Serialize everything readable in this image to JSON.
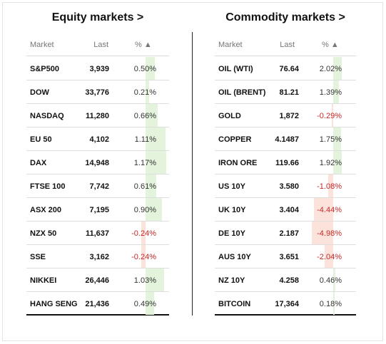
{
  "equity": {
    "title": "Equity markets >",
    "headers": {
      "market": "Market",
      "last": "Last",
      "pct": "% ▲"
    },
    "rows": [
      {
        "market": "S&P500",
        "last": "3,939",
        "pct": "0.50%",
        "value": 0.5
      },
      {
        "market": "DOW",
        "last": "33,776",
        "pct": "0.21%",
        "value": 0.21
      },
      {
        "market": "NASDAQ",
        "last": "11,280",
        "pct": "0.66%",
        "value": 0.66
      },
      {
        "market": "EU 50",
        "last": "4,102",
        "pct": "1.11%",
        "value": 1.11
      },
      {
        "market": "DAX",
        "last": "14,948",
        "pct": "1.17%",
        "value": 1.17
      },
      {
        "market": "FTSE 100",
        "last": "7,742",
        "pct": "0.61%",
        "value": 0.61
      },
      {
        "market": "ASX 200",
        "last": "7,195",
        "pct": "0.90%",
        "value": 0.9
      },
      {
        "market": "NZX 50",
        "last": "11,637",
        "pct": "-0.24%",
        "value": -0.24
      },
      {
        "market": "SSE",
        "last": "3,162",
        "pct": "-0.24%",
        "value": -0.24
      },
      {
        "market": "NIKKEI",
        "last": "26,446",
        "pct": "1.03%",
        "value": 1.03
      },
      {
        "market": "HANG SENG",
        "last": "21,436",
        "pct": "0.49%",
        "value": 0.49
      }
    ]
  },
  "commodity": {
    "title": "Commodity markets >",
    "headers": {
      "market": "Market",
      "last": "Last",
      "pct": "% ▲"
    },
    "rows": [
      {
        "market": "OIL (WTI)",
        "last": "76.64",
        "pct": "2.02%",
        "value": 2.02
      },
      {
        "market": "OIL (BRENT)",
        "last": "81.21",
        "pct": "1.39%",
        "value": 1.39
      },
      {
        "market": "GOLD",
        "last": "1,872",
        "pct": "-0.29%",
        "value": -0.29
      },
      {
        "market": "COPPER",
        "last": "4.1487",
        "pct": "1.75%",
        "value": 1.75
      },
      {
        "market": "IRON ORE",
        "last": "119.66",
        "pct": "1.92%",
        "value": 1.92
      },
      {
        "market": "US 10Y",
        "last": "3.580",
        "pct": "-1.08%",
        "value": -1.08
      },
      {
        "market": "UK 10Y",
        "last": "3.404",
        "pct": "-4.44%",
        "value": -4.44
      },
      {
        "market": "DE 10Y",
        "last": "2.187",
        "pct": "-4.98%",
        "value": -4.98
      },
      {
        "market": "AUS 10Y",
        "last": "3.651",
        "pct": "-2.04%",
        "value": -2.04
      },
      {
        "market": "NZ 10Y",
        "last": "4.258",
        "pct": "0.46%",
        "value": 0.46
      },
      {
        "market": "BITCOIN",
        "last": "17,364",
        "pct": "0.18%",
        "value": 0.18
      }
    ]
  },
  "colors": {
    "positive_bar": "#e3f3dc",
    "negative_bar": "#fbe3dc",
    "negative_text": "#c62828"
  }
}
